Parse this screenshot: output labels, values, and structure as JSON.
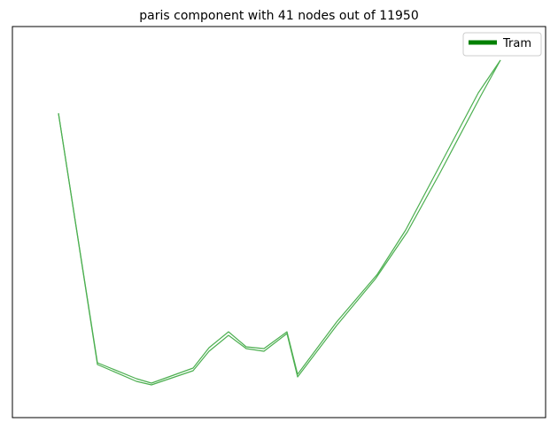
{
  "title": "paris component with 41 nodes out of 11950",
  "legend": {
    "entries": [
      {
        "label": "Tram",
        "color": "#008000"
      }
    ],
    "placement": "top-right"
  },
  "network": {
    "axes_visible": false,
    "line_color": "#4caf50",
    "paths": [
      {
        "name": "tram-track-a",
        "points": [
          [
            66,
            128
          ],
          [
            110,
            410
          ],
          [
            154,
            428
          ],
          [
            171,
            433
          ],
          [
            218,
            416
          ],
          [
            236,
            393
          ],
          [
            258,
            375
          ],
          [
            278,
            392
          ],
          [
            298,
            394
          ],
          [
            324,
            375
          ],
          [
            336,
            423
          ],
          [
            380,
            364
          ],
          [
            426,
            310
          ],
          [
            458,
            260
          ],
          [
            494,
            192
          ],
          [
            540,
            105
          ],
          [
            565,
            68
          ]
        ]
      },
      {
        "name": "tram-track-b",
        "points": [
          [
            66,
            128
          ],
          [
            110,
            412
          ],
          [
            154,
            431
          ],
          [
            171,
            435
          ],
          [
            218,
            419
          ],
          [
            236,
            397
          ],
          [
            258,
            379
          ],
          [
            278,
            394
          ],
          [
            298,
            397
          ],
          [
            324,
            377
          ],
          [
            336,
            426
          ],
          [
            380,
            368
          ],
          [
            424,
            315
          ],
          [
            460,
            262
          ],
          [
            497,
            195
          ],
          [
            543,
            108
          ],
          [
            565,
            68
          ]
        ]
      }
    ]
  }
}
